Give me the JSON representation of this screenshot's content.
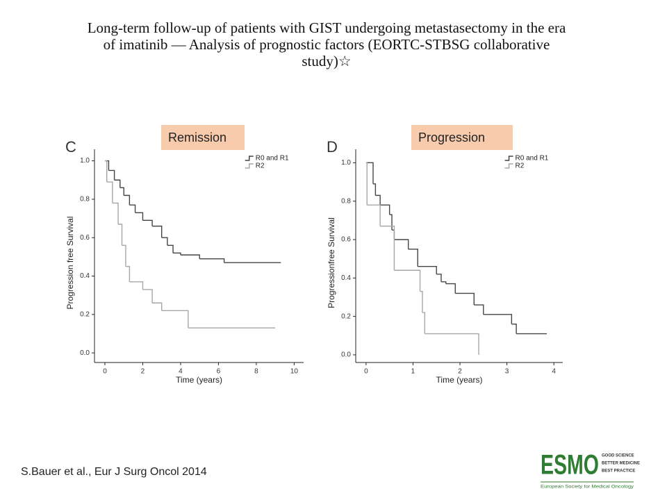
{
  "slide": {
    "title_lines": [
      "Long-term follow-up of patients with GIST undergoing metastasectomy in the era",
      "of imatinib — Analysis of prognostic factors (EORTC-STBSG collaborative",
      "study)☆"
    ],
    "citation": "S.Bauer et al., Eur J Surg Oncol 2014",
    "logo": {
      "name": "ESMO",
      "taglines": [
        "GOOD SCIENCE",
        "BETTER MEDICINE",
        "BEST PRACTICE"
      ],
      "society": "European Society for Medical Oncology"
    }
  },
  "chart_data": [
    {
      "type": "step",
      "panel": "C",
      "label": "Remission",
      "x_label": "Time (years)",
      "y_label": "Progression free Survival",
      "xlim": [
        -0.55,
        10.5
      ],
      "ylim": [
        -0.05,
        1.06
      ],
      "xticks": [
        0,
        2,
        4,
        6,
        8,
        10
      ],
      "yticks": [
        {
          "value": 0,
          "label": "0.0"
        },
        {
          "value": 0.2,
          "label": "0.2"
        },
        {
          "value": 0.4,
          "label": "0.4"
        },
        {
          "value": 0.6,
          "label": "0.6"
        },
        {
          "value": 0.8,
          "label": "0.8"
        },
        {
          "value": 1,
          "label": "1.0"
        }
      ],
      "series": [
        {
          "name": "R0 and R1",
          "color": "#444444",
          "x": [
            0,
            0.2,
            0.5,
            0.8,
            1.0,
            1.3,
            1.6,
            2.0,
            2.5,
            3.0,
            3.3,
            3.6,
            4.0,
            5.0,
            6.3,
            9.3
          ],
          "values": [
            1.0,
            0.95,
            0.9,
            0.86,
            0.82,
            0.77,
            0.73,
            0.69,
            0.66,
            0.6,
            0.56,
            0.52,
            0.51,
            0.49,
            0.47,
            0.47
          ]
        },
        {
          "name": "R2",
          "color": "#a6a6a6",
          "x": [
            0,
            0.1,
            0.4,
            0.7,
            0.9,
            1.1,
            1.3,
            1.5,
            2.0,
            2.5,
            3.0,
            4.4,
            9.0
          ],
          "values": [
            1.0,
            0.89,
            0.78,
            0.67,
            0.56,
            0.45,
            0.37,
            0.37,
            0.33,
            0.26,
            0.22,
            0.13,
            0.13
          ]
        }
      ]
    },
    {
      "type": "step",
      "panel": "D",
      "label": "Progression",
      "x_label": "Time (years)",
      "y_label": "Progressionfree Survival",
      "xlim": [
        -0.22,
        4.19
      ],
      "ylim": [
        -0.04,
        1.07
      ],
      "xticks": [
        0,
        1,
        2,
        3,
        4
      ],
      "yticks": [
        {
          "value": 0,
          "label": "0.0"
        },
        {
          "value": 0.2,
          "label": "0.2"
        },
        {
          "value": 0.4,
          "label": "0.4"
        },
        {
          "value": 0.6,
          "label": "0.6"
        },
        {
          "value": 0.8,
          "label": "0.8"
        },
        {
          "value": 1,
          "label": "1.0"
        }
      ],
      "series": [
        {
          "name": "R0 and R1",
          "color": "#444444",
          "x": [
            0,
            0.15,
            0.2,
            0.3,
            0.5,
            0.55,
            0.6,
            0.9,
            1.1,
            1.5,
            1.6,
            1.7,
            1.9,
            2.3,
            2.5,
            3.1,
            3.2,
            3.85
          ],
          "values": [
            1.0,
            0.89,
            0.83,
            0.78,
            0.73,
            0.65,
            0.6,
            0.55,
            0.46,
            0.42,
            0.38,
            0.37,
            0.32,
            0.26,
            0.21,
            0.16,
            0.11,
            0.11
          ]
        },
        {
          "name": "R2",
          "color": "#a6a6a6",
          "x": [
            0,
            0.02,
            0.3,
            0.6,
            1.15,
            1.2,
            1.25,
            2.4
          ],
          "values": [
            1.0,
            0.78,
            0.67,
            0.44,
            0.33,
            0.22,
            0.11,
            0.0
          ]
        }
      ]
    }
  ]
}
